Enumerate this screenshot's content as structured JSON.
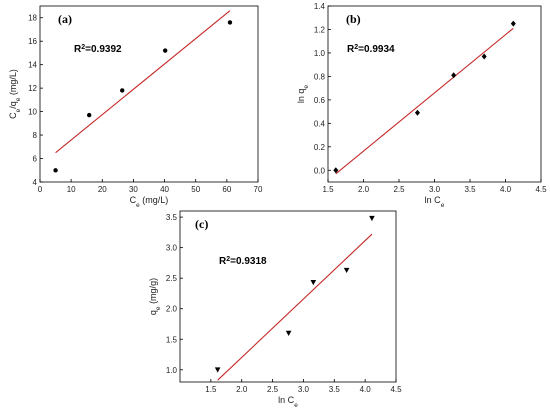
{
  "chart_data": [
    {
      "type": "scatter",
      "panel_label": "(a)",
      "annotation": {
        "base": "R",
        "sup": "2",
        "rest": "=0.9392"
      },
      "xlabel": {
        "base": "C",
        "sub": "e",
        "rest": " (mg/L)"
      },
      "ylabel": {
        "base": "C",
        "sub": "e",
        "mid": "/q",
        "sub2": "e",
        "rest": " (mg/L)"
      },
      "xlim": [
        0,
        70
      ],
      "ylim": [
        4,
        19
      ],
      "xticks": [
        0,
        10,
        20,
        30,
        40,
        50,
        60,
        70
      ],
      "yticks": [
        4,
        6,
        8,
        10,
        12,
        14,
        16,
        18
      ],
      "marker": "circle",
      "points": [
        {
          "x": 5.0,
          "y": 5.0
        },
        {
          "x": 15.8,
          "y": 9.7
        },
        {
          "x": 26.4,
          "y": 11.8
        },
        {
          "x": 40.2,
          "y": 15.2
        },
        {
          "x": 61.0,
          "y": 17.6
        }
      ],
      "fit_line": {
        "x": [
          5.0,
          61.0
        ],
        "y": [
          6.5,
          18.6
        ]
      },
      "line_color": "#c62828"
    },
    {
      "type": "scatter",
      "panel_label": "(b)",
      "annotation": {
        "base": "R",
        "sup": "2",
        "rest": "=0.9934"
      },
      "xlabel": {
        "base": "ln C",
        "sub": "e",
        "rest": ""
      },
      "ylabel": {
        "base": "ln q",
        "sub": "e",
        "mid": "",
        "sub2": "",
        "rest": ""
      },
      "xlim": [
        1.5,
        4.5
      ],
      "ylim": [
        -0.1,
        1.4
      ],
      "xticks": [
        "1.5",
        "2.0",
        "2.5",
        "3.0",
        "3.5",
        "4.0",
        "4.5"
      ],
      "yticks": [
        "0.0",
        "0.2",
        "0.4",
        "0.6",
        "0.8",
        "1.0",
        "1.2",
        "1.4"
      ],
      "marker": "diamond",
      "points": [
        {
          "x": 1.61,
          "y": 0.0
        },
        {
          "x": 2.76,
          "y": 0.49
        },
        {
          "x": 3.27,
          "y": 0.81
        },
        {
          "x": 3.7,
          "y": 0.97
        },
        {
          "x": 4.11,
          "y": 1.25
        }
      ],
      "fit_line": {
        "x": [
          1.61,
          4.11
        ],
        "y": [
          -0.03,
          1.21
        ]
      },
      "line_color": "#c62828"
    },
    {
      "type": "scatter",
      "panel_label": "(c)",
      "annotation": {
        "base": "R",
        "sup": "2",
        "rest": "=0.9318"
      },
      "xlabel": {
        "base": "ln C",
        "sub": "e",
        "rest": ""
      },
      "ylabel": {
        "base": "q",
        "sub": "e",
        "mid": "",
        "sub2": "",
        "rest": " (mg/g)"
      },
      "xlim": [
        1.0,
        4.5
      ],
      "ylim": [
        0.8,
        3.6
      ],
      "xticks": [
        "1.5",
        "2.0",
        "2.5",
        "3.0",
        "3.5",
        "4.0",
        "4.5"
      ],
      "yticks": [
        "1.0",
        "1.5",
        "2.0",
        "2.5",
        "3.0",
        "3.5"
      ],
      "marker": "triangle-down",
      "points": [
        {
          "x": 1.61,
          "y": 1.0
        },
        {
          "x": 2.76,
          "y": 1.6
        },
        {
          "x": 3.16,
          "y": 2.43
        },
        {
          "x": 3.7,
          "y": 2.63
        },
        {
          "x": 4.11,
          "y": 3.48
        }
      ],
      "fit_line": {
        "x": [
          1.61,
          4.11
        ],
        "y": [
          0.83,
          3.22
        ]
      },
      "line_color": "#c62828"
    }
  ]
}
